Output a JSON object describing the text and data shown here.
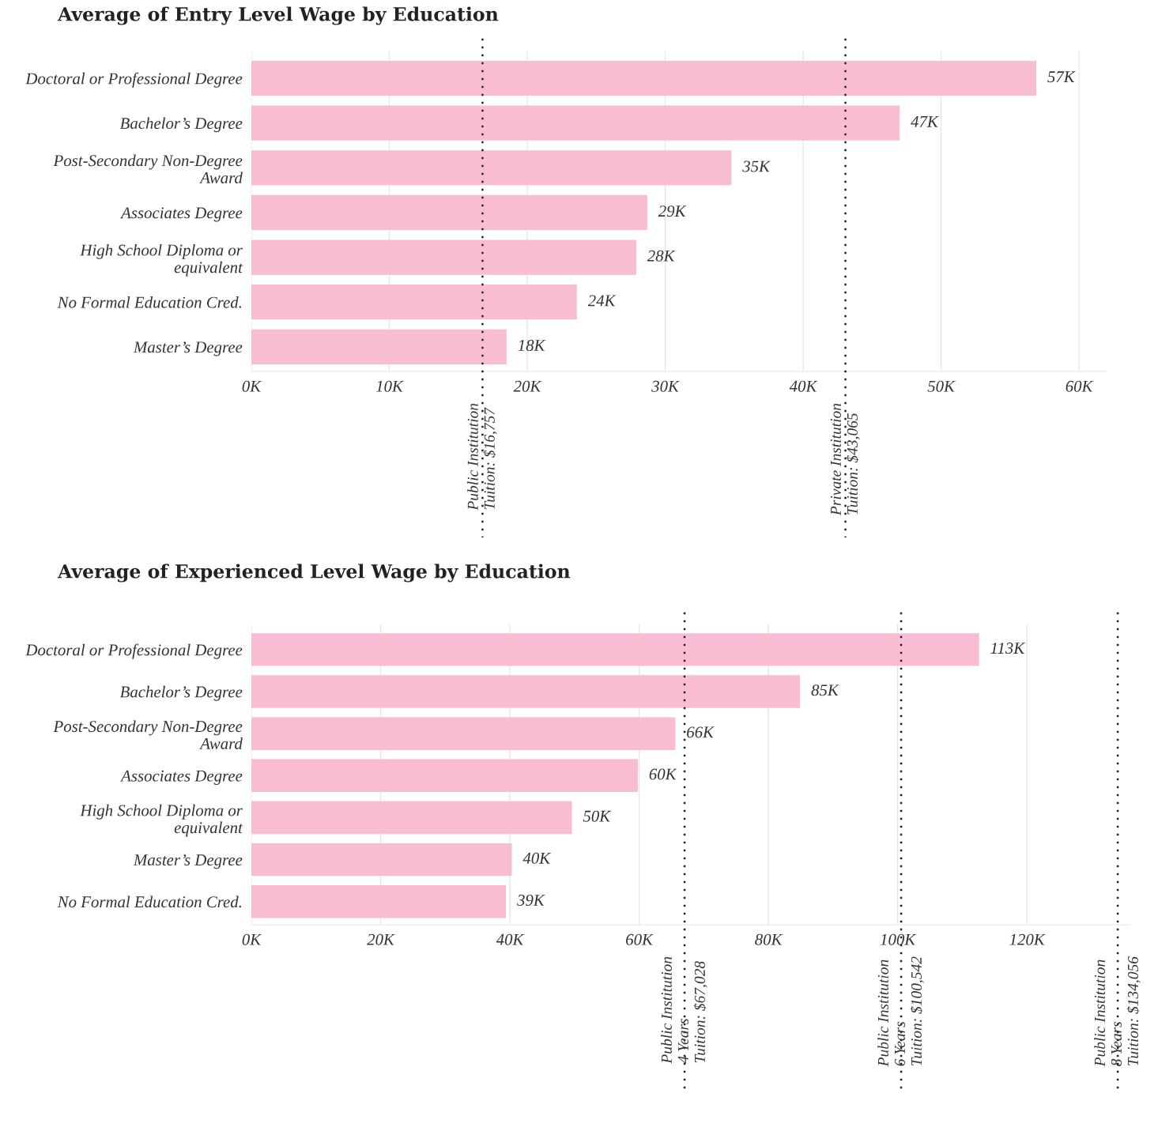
{
  "chart_data": [
    {
      "type": "bar",
      "orientation": "horizontal",
      "title": "Average of Entry Level Wage by Education",
      "categories": [
        "Doctoral or Professional Degree",
        "Bachelor’s Degree",
        "Post-Secondary Non-Degree\nAward",
        "Associates Degree",
        "High School Diploma or\nequivalent",
        "No Formal Education Cred.",
        "Master’s Degree"
      ],
      "values": [
        56900,
        47000,
        34800,
        28700,
        27900,
        23600,
        18500
      ],
      "value_labels": [
        "57K",
        "47K",
        "35K",
        "29K",
        "28K",
        "24K",
        "18K"
      ],
      "color": "#f8bdd3",
      "grid": "x",
      "xlim": [
        0,
        62000
      ],
      "xticks": [
        {
          "value": 0,
          "label": "0K"
        },
        {
          "value": 10000,
          "label": "10K"
        },
        {
          "value": 20000,
          "label": "20K"
        },
        {
          "value": 30000,
          "label": "30K"
        },
        {
          "value": 40000,
          "label": "40K"
        },
        {
          "value": 50000,
          "label": "50K"
        },
        {
          "value": 60000,
          "label": "60K"
        }
      ],
      "ref_lines": [
        {
          "axis": "x",
          "value": 16757,
          "label": "Public Institution\nTuition: $16,757",
          "color": "#222222",
          "line_style": "dotted"
        },
        {
          "axis": "x",
          "value": 43065,
          "label": "Private Institution\nTuition: $43,065",
          "color": "#222222",
          "line_style": "dotted"
        }
      ]
    },
    {
      "type": "bar",
      "orientation": "horizontal",
      "title": "Average of Experienced Level Wage by Education",
      "categories": [
        "Doctoral or Professional Degree",
        "Bachelor’s Degree",
        "Post-Secondary Non-Degree\nAward",
        "Associates Degree",
        "High School Diploma or\nequivalent",
        "Master’s Degree",
        "No Formal Education Cred."
      ],
      "values": [
        112600,
        84900,
        65600,
        59800,
        49600,
        40300,
        39400
      ],
      "value_labels": [
        "113K",
        "85K",
        "66K",
        "60K",
        "50K",
        "40K",
        "39K"
      ],
      "color": "#f8bdd3",
      "grid": "x",
      "xlim": [
        0,
        136000
      ],
      "xticks": [
        {
          "value": 0,
          "label": "0K"
        },
        {
          "value": 20000,
          "label": "20K"
        },
        {
          "value": 40000,
          "label": "40K"
        },
        {
          "value": 60000,
          "label": "60K"
        },
        {
          "value": 80000,
          "label": "80K"
        },
        {
          "value": 100000,
          "label": "100K"
        },
        {
          "value": 120000,
          "label": "120K"
        }
      ],
      "ref_lines": [
        {
          "axis": "x",
          "value": 67028,
          "label": "Public Institution\n4 Years\nTuition: $67,028",
          "color": "#222222",
          "line_style": "dotted"
        },
        {
          "axis": "x",
          "value": 100542,
          "label": "Public Institution\n6 Years\nTuition: $100,542",
          "color": "#222222",
          "line_style": "dotted"
        },
        {
          "axis": "x",
          "value": 134056,
          "label": "Public Institution\n8 Years\nTuition: $134,056",
          "color": "#222222",
          "line_style": "dotted"
        }
      ]
    }
  ]
}
